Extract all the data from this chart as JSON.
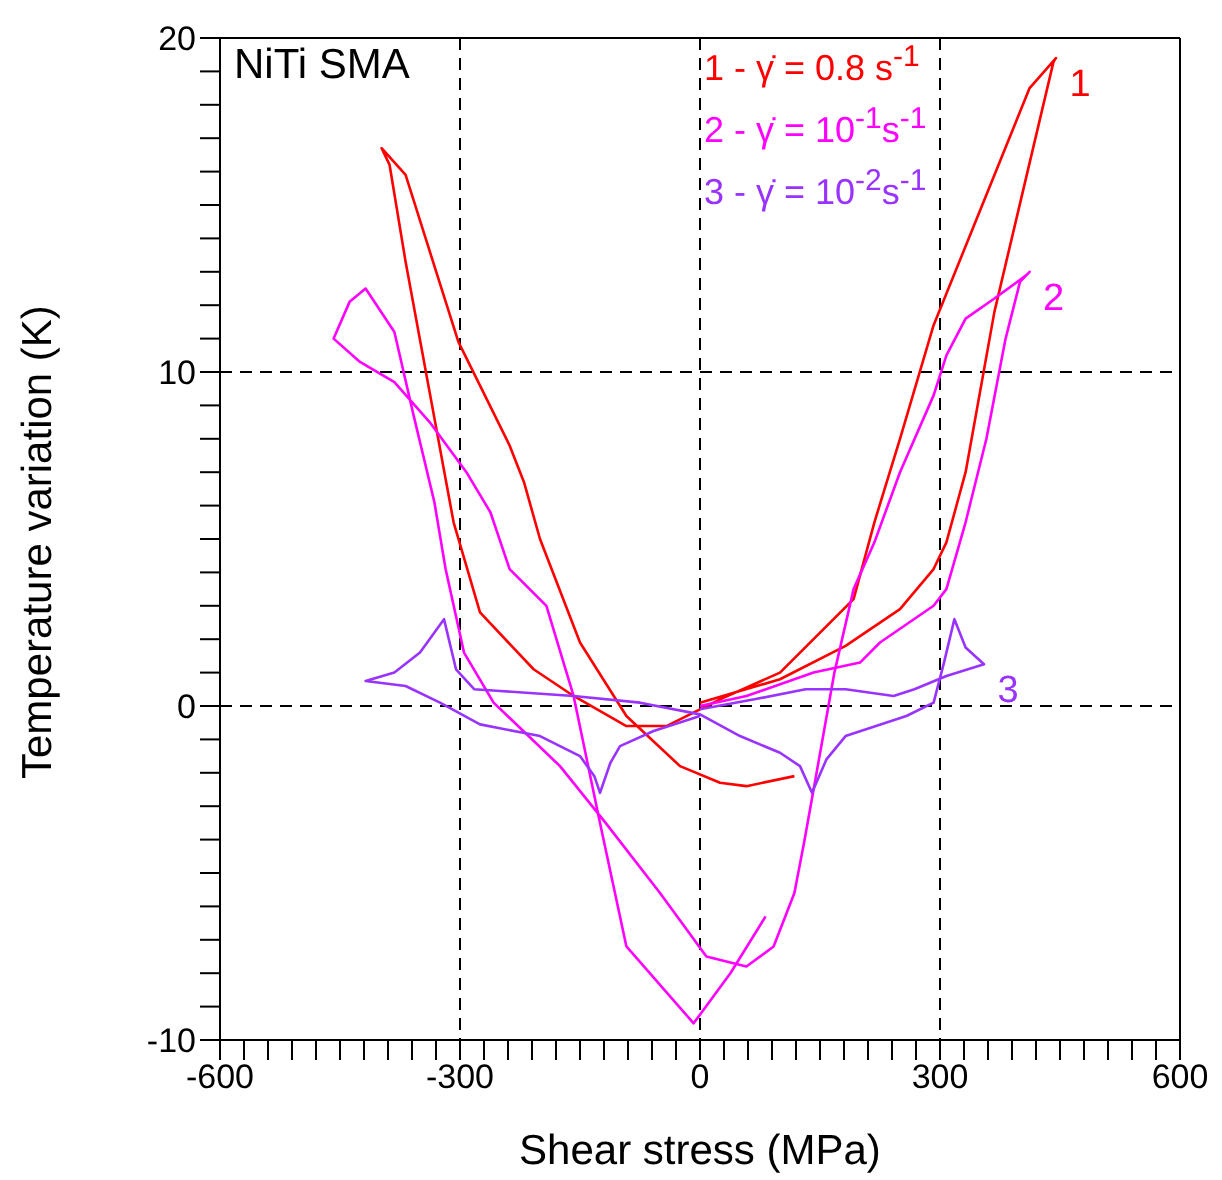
{
  "chart_data": {
    "type": "line",
    "xlabel": "Shear stress (MPa)",
    "ylabel": "Temperature variation (K)",
    "xlim": [
      -600,
      600
    ],
    "ylim": [
      -10,
      20
    ],
    "xticks": [
      -600,
      {
        "value": -570,
        "label": null
      },
      {
        "value": -540,
        "label": null
      },
      {
        "value": -510,
        "label": null
      },
      {
        "value": -480,
        "label": null
      },
      {
        "value": -450,
        "label": null
      },
      {
        "value": -420,
        "label": null
      },
      {
        "value": -390,
        "label": null
      },
      {
        "value": -360,
        "label": null
      },
      {
        "value": -330,
        "label": null
      },
      -300,
      {
        "value": -270,
        "label": null
      },
      {
        "value": -240,
        "label": null
      },
      {
        "value": -210,
        "label": null
      },
      {
        "value": -180,
        "label": null
      },
      {
        "value": -150,
        "label": null
      },
      {
        "value": -120,
        "label": null
      },
      {
        "value": -90,
        "label": null
      },
      {
        "value": -60,
        "label": null
      },
      {
        "value": -30,
        "label": null
      },
      0,
      {
        "value": 30,
        "label": null
      },
      {
        "value": 60,
        "label": null
      },
      {
        "value": 90,
        "label": null
      },
      {
        "value": 120,
        "label": null
      },
      {
        "value": 150,
        "label": null
      },
      {
        "value": 180,
        "label": null
      },
      {
        "value": 210,
        "label": null
      },
      {
        "value": 240,
        "label": null
      },
      {
        "value": 270,
        "label": null
      },
      300,
      {
        "value": 330,
        "label": null
      },
      {
        "value": 360,
        "label": null
      },
      {
        "value": 390,
        "label": null
      },
      {
        "value": 420,
        "label": null
      },
      {
        "value": 450,
        "label": null
      },
      {
        "value": 480,
        "label": null
      },
      {
        "value": 510,
        "label": null
      },
      {
        "value": 540,
        "label": null
      },
      {
        "value": 570,
        "label": null
      },
      600
    ],
    "yticks": [
      -10,
      {
        "value": -9,
        "label": null
      },
      {
        "value": -8,
        "label": null
      },
      {
        "value": -7,
        "label": null
      },
      {
        "value": -6,
        "label": null
      },
      {
        "value": -5,
        "label": null
      },
      {
        "value": -4,
        "label": null
      },
      {
        "value": -3,
        "label": null
      },
      {
        "value": -2,
        "label": null
      },
      {
        "value": -1,
        "label": null
      },
      0,
      {
        "value": 1,
        "label": null
      },
      {
        "value": 2,
        "label": null
      },
      {
        "value": 3,
        "label": null
      },
      {
        "value": 4,
        "label": null
      },
      {
        "value": 5,
        "label": null
      },
      {
        "value": 6,
        "label": null
      },
      {
        "value": 7,
        "label": null
      },
      {
        "value": 8,
        "label": null
      },
      {
        "value": 9,
        "label": null
      },
      10,
      {
        "value": 11,
        "label": null
      },
      {
        "value": 12,
        "label": null
      },
      {
        "value": 13,
        "label": null
      },
      {
        "value": 14,
        "label": null
      },
      {
        "value": 15,
        "label": null
      },
      {
        "value": 16,
        "label": null
      },
      {
        "value": 17,
        "label": null
      },
      {
        "value": 18,
        "label": null
      },
      {
        "value": 19,
        "label": null
      },
      20
    ],
    "grid": true,
    "legend": "top",
    "line_style": "solid",
    "annotations": [
      "NiTi SMA",
      "1",
      "2",
      "3"
    ],
    "series": [
      {
        "name": "1 - γ̇ = 0.8 s$^{-1}$",
        "color": "#ff0000",
        "x": [
          0,
          100,
          182,
          250,
          292,
          308,
          332,
          368,
          442,
          445,
          412,
          292,
          250,
          218,
          192,
          100,
          25,
          0,
          -42,
          -92,
          -158,
          -208,
          -275,
          -308,
          -368,
          -388,
          -398,
          -368,
          -302,
          -238,
          -220,
          -200,
          -150,
          -92,
          -25,
          25,
          58,
          118
        ],
        "values": [
          0.1,
          0.8,
          1.8,
          2.9,
          4.1,
          4.9,
          7.0,
          11.8,
          19.3,
          19.4,
          18.5,
          11.4,
          8.0,
          5.5,
          3.2,
          1.0,
          0.2,
          -0.1,
          -0.6,
          -0.6,
          0.3,
          1.1,
          2.8,
          5.5,
          13.3,
          16.2,
          16.7,
          15.9,
          10.9,
          7.8,
          6.7,
          5.0,
          1.9,
          -0.3,
          -1.8,
          -2.3,
          -2.4,
          -2.1
        ]
      },
      {
        "name": "2 - γ̇ = 10$^{-1}$s$^{-1}$",
        "color": "#ff00ff",
        "x": [
          0,
          58,
          142,
          200,
          225,
          292,
          308,
          332,
          358,
          382,
          400,
          412,
          408,
          368,
          332,
          308,
          292,
          250,
          218,
          192,
          168,
          142,
          130,
          118,
          92,
          58,
          8,
          -50,
          -118,
          -175,
          -258,
          -295,
          -318,
          -332,
          -358,
          -382,
          -418,
          -438,
          -458,
          -425,
          -382,
          -338,
          -292,
          -262,
          -238,
          -192,
          -158,
          -125,
          -92,
          -58,
          -8,
          38,
          82
        ],
        "values": [
          0,
          0.3,
          1.0,
          1.3,
          1.9,
          3.0,
          3.5,
          5.5,
          8.0,
          11.0,
          12.7,
          13.0,
          12.9,
          12.2,
          11.6,
          10.5,
          9.3,
          7.0,
          4.9,
          3.5,
          1.0,
          -2.5,
          -4.1,
          -5.6,
          -7.2,
          -7.8,
          -7.5,
          -5.6,
          -3.5,
          -1.8,
          0.1,
          1.6,
          4.1,
          6.1,
          8.7,
          11.2,
          12.5,
          12.1,
          11.0,
          10.3,
          9.7,
          8.5,
          7.0,
          5.8,
          4.1,
          3.0,
          0.3,
          -3.5,
          -7.2,
          null,
          -9.5,
          -8.0,
          -6.3
        ]
      },
      {
        "name": "3 - γ̇ = 10$^{-2}$s$^{-1}$",
        "color": "#9933ff",
        "x": [
          0,
          68,
          132,
          182,
          242,
          268,
          308,
          355,
          332,
          318,
          305,
          292,
          258,
          182,
          158,
          140,
          125,
          100,
          50,
          0,
          -75,
          -158,
          -250,
          -282,
          -305,
          -320,
          -350,
          -382,
          -418,
          -368,
          -325,
          -275,
          -200,
          -150,
          -132,
          -125,
          -112,
          -100,
          -58,
          0
        ],
        "values": [
          -0.1,
          0.2,
          0.5,
          0.5,
          0.3,
          0.5,
          0.9,
          1.25,
          1.75,
          2.6,
          1.3,
          0.1,
          -0.3,
          -0.9,
          -1.6,
          -2.6,
          -1.8,
          -1.4,
          -0.9,
          -0.25,
          0.1,
          0.3,
          0.45,
          0.5,
          1.1,
          2.6,
          1.6,
          1.0,
          0.75,
          0.6,
          0.1,
          -0.55,
          -0.9,
          -1.5,
          -2.1,
          -2.6,
          -1.7,
          -1.2,
          -0.75,
          -0.3
        ]
      }
    ]
  }
}
